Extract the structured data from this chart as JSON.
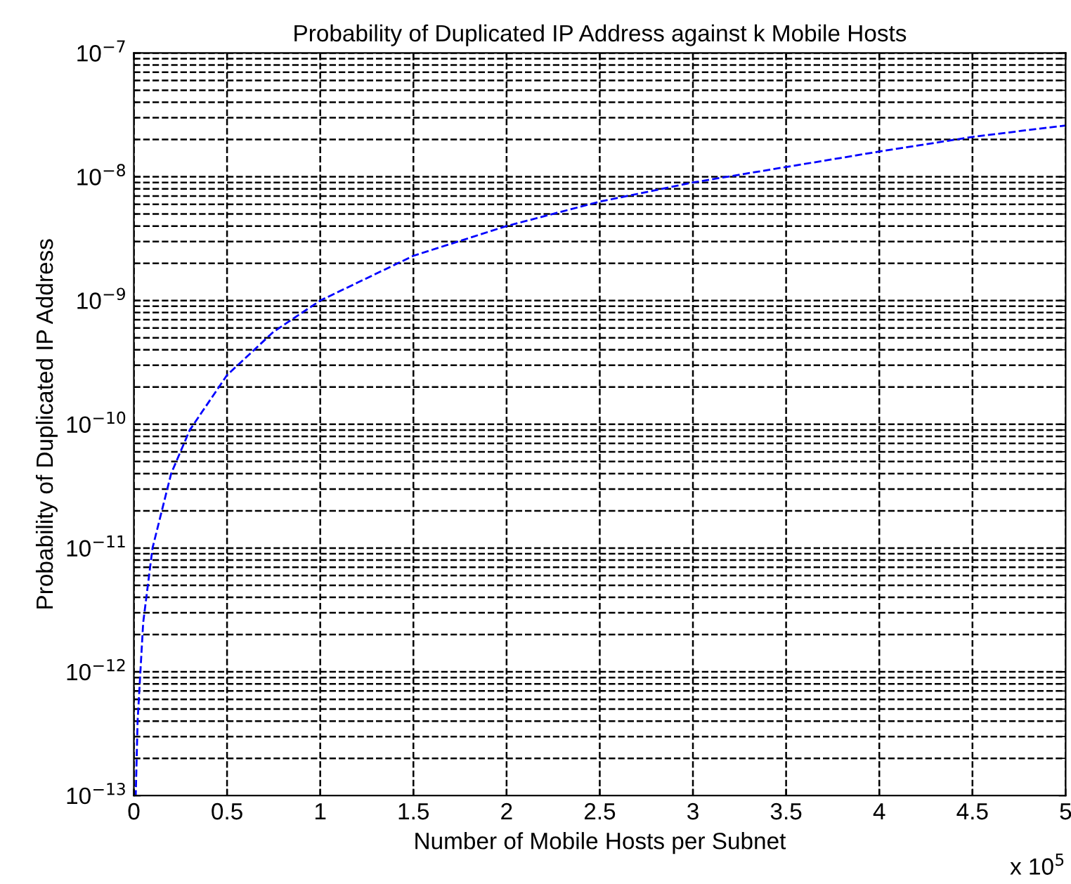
{
  "chart_data": {
    "type": "line",
    "title": "Probability of Duplicated IP Address against k Mobile Hosts",
    "xlabel": "Number of Mobile Hosts per Subnet",
    "ylabel": "Probability of Duplicated IP Address",
    "annotations": [
      "x 10$^{5}$"
    ],
    "x": [
      0.0,
      0.01,
      0.02,
      0.05,
      0.1,
      0.2,
      0.3,
      0.5,
      0.75,
      1,
      1.5,
      2,
      2.5,
      3,
      3.5,
      4,
      4.5,
      5
    ],
    "series": [
      {
        "color": "#0000ff",
        "values": [
          1e-13,
          1e-13,
          4e-13,
          2.5e-12,
          1e-11,
          4e-11,
          9e-11,
          2.5e-10,
          5.6e-10,
          1e-09,
          2.3e-09,
          4e-09,
          6.3e-09,
          9e-09,
          1.2e-08,
          1.6e-08,
          2.1e-08,
          2.6e-08
        ]
      }
    ],
    "line_style": "dashed",
    "marker": "none",
    "log": "y",
    "grid": true,
    "legend": false,
    "xlim": [
      0,
      5
    ],
    "ylim": [
      1e-13,
      1e-07
    ],
    "xticks": [
      0,
      0.5,
      1,
      1.5,
      2,
      2.5,
      3,
      3.5,
      4,
      4.5,
      5
    ],
    "yticks": [
      {
        "value": 1e-13,
        "label": "10$^{−13}$"
      },
      {
        "value": 1e-12,
        "label": "10$^{−12}$"
      },
      {
        "value": 1e-11,
        "label": "10$^{−11}$"
      },
      {
        "value": 1e-10,
        "label": "10$^{−10}$"
      },
      {
        "value": 1e-09,
        "label": "10$^{−9}$"
      },
      {
        "value": 1e-08,
        "label": "10$^{−8}$"
      },
      {
        "value": 1e-07,
        "label": "10$^{−7}$"
      }
    ]
  }
}
